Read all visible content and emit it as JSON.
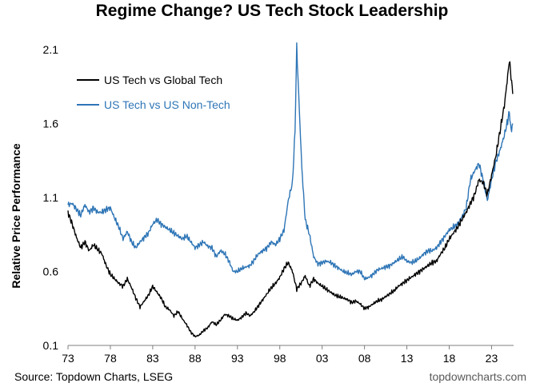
{
  "chart_data": {
    "type": "line",
    "title": "Regime Change? US Tech Stock Leadership",
    "xlabel": "",
    "ylabel": "Relative Price Performance",
    "xlim": [
      1973,
      2025.6
    ],
    "ylim": [
      0.1,
      2.1
    ],
    "x_ticks": [
      1973,
      1978,
      1983,
      1988,
      1993,
      1998,
      2003,
      2008,
      2013,
      2018,
      2023
    ],
    "x_tick_labels": [
      "73",
      "78",
      "83",
      "88",
      "93",
      "98",
      "03",
      "08",
      "13",
      "18",
      "23"
    ],
    "y_ticks": [
      0.1,
      0.6,
      1.1,
      1.6,
      2.1
    ],
    "y_tick_labels": [
      "0.1",
      "0.6",
      "1.1",
      "1.6",
      "2.1"
    ],
    "legend_position": "top-left",
    "series": [
      {
        "name": "US Tech vs Global Tech",
        "color": "#000000",
        "points": [
          [
            1973.0,
            1.0
          ],
          [
            1973.5,
            0.92
          ],
          [
            1974.0,
            0.83
          ],
          [
            1974.5,
            0.76
          ],
          [
            1975.0,
            0.8
          ],
          [
            1975.5,
            0.74
          ],
          [
            1976.0,
            0.78
          ],
          [
            1976.5,
            0.75
          ],
          [
            1977.0,
            0.72
          ],
          [
            1977.5,
            0.64
          ],
          [
            1978.0,
            0.58
          ],
          [
            1978.5,
            0.55
          ],
          [
            1979.0,
            0.52
          ],
          [
            1979.5,
            0.5
          ],
          [
            1980.0,
            0.55
          ],
          [
            1980.5,
            0.49
          ],
          [
            1981.0,
            0.42
          ],
          [
            1981.5,
            0.36
          ],
          [
            1982.0,
            0.4
          ],
          [
            1982.5,
            0.44
          ],
          [
            1983.0,
            0.5
          ],
          [
            1983.5,
            0.46
          ],
          [
            1984.0,
            0.42
          ],
          [
            1984.5,
            0.36
          ],
          [
            1985.0,
            0.34
          ],
          [
            1985.5,
            0.3
          ],
          [
            1986.0,
            0.33
          ],
          [
            1986.5,
            0.28
          ],
          [
            1987.0,
            0.24
          ],
          [
            1987.5,
            0.19
          ],
          [
            1988.0,
            0.16
          ],
          [
            1988.5,
            0.17
          ],
          [
            1989.0,
            0.2
          ],
          [
            1989.5,
            0.22
          ],
          [
            1990.0,
            0.26
          ],
          [
            1990.5,
            0.24
          ],
          [
            1991.0,
            0.27
          ],
          [
            1991.5,
            0.31
          ],
          [
            1992.0,
            0.3
          ],
          [
            1992.5,
            0.28
          ],
          [
            1993.0,
            0.27
          ],
          [
            1993.5,
            0.29
          ],
          [
            1994.0,
            0.32
          ],
          [
            1994.5,
            0.3
          ],
          [
            1995.0,
            0.33
          ],
          [
            1995.5,
            0.37
          ],
          [
            1996.0,
            0.41
          ],
          [
            1996.5,
            0.45
          ],
          [
            1997.0,
            0.49
          ],
          [
            1997.5,
            0.52
          ],
          [
            1998.0,
            0.56
          ],
          [
            1998.5,
            0.62
          ],
          [
            1999.0,
            0.66
          ],
          [
            1999.5,
            0.6
          ],
          [
            2000.0,
            0.48
          ],
          [
            2000.5,
            0.52
          ],
          [
            2001.0,
            0.57
          ],
          [
            2001.5,
            0.5
          ],
          [
            2002.0,
            0.55
          ],
          [
            2002.5,
            0.52
          ],
          [
            2003.0,
            0.5
          ],
          [
            2003.5,
            0.48
          ],
          [
            2004.0,
            0.46
          ],
          [
            2004.5,
            0.44
          ],
          [
            2005.0,
            0.43
          ],
          [
            2005.5,
            0.42
          ],
          [
            2006.0,
            0.41
          ],
          [
            2006.5,
            0.39
          ],
          [
            2007.0,
            0.4
          ],
          [
            2007.5,
            0.38
          ],
          [
            2008.0,
            0.35
          ],
          [
            2008.5,
            0.36
          ],
          [
            2009.0,
            0.38
          ],
          [
            2009.5,
            0.4
          ],
          [
            2010.0,
            0.41
          ],
          [
            2010.5,
            0.43
          ],
          [
            2011.0,
            0.45
          ],
          [
            2011.5,
            0.47
          ],
          [
            2012.0,
            0.5
          ],
          [
            2012.5,
            0.52
          ],
          [
            2013.0,
            0.54
          ],
          [
            2013.5,
            0.56
          ],
          [
            2014.0,
            0.58
          ],
          [
            2014.5,
            0.6
          ],
          [
            2015.0,
            0.62
          ],
          [
            2015.5,
            0.64
          ],
          [
            2016.0,
            0.66
          ],
          [
            2016.5,
            0.67
          ],
          [
            2017.0,
            0.72
          ],
          [
            2017.5,
            0.76
          ],
          [
            2018.0,
            0.82
          ],
          [
            2018.5,
            0.86
          ],
          [
            2019.0,
            0.9
          ],
          [
            2019.5,
            0.95
          ],
          [
            2020.0,
            1.0
          ],
          [
            2020.5,
            1.06
          ],
          [
            2021.0,
            1.12
          ],
          [
            2021.5,
            1.22
          ],
          [
            2022.0,
            1.2
          ],
          [
            2022.5,
            1.12
          ],
          [
            2023.0,
            1.25
          ],
          [
            2023.5,
            1.38
          ],
          [
            2024.0,
            1.55
          ],
          [
            2024.5,
            1.72
          ],
          [
            2024.9,
            1.92
          ],
          [
            2025.1,
            2.03
          ],
          [
            2025.3,
            1.92
          ],
          [
            2025.5,
            1.8
          ]
        ]
      },
      {
        "name": "US Tech vs US Non-Tech",
        "color": "#2e75b6",
        "points": [
          [
            1973.0,
            1.05
          ],
          [
            1973.5,
            1.06
          ],
          [
            1974.0,
            1.02
          ],
          [
            1974.5,
            0.98
          ],
          [
            1975.0,
            1.05
          ],
          [
            1975.5,
            1.0
          ],
          [
            1976.0,
            1.03
          ],
          [
            1976.5,
            1.0
          ],
          [
            1977.0,
            1.0
          ],
          [
            1977.5,
            1.02
          ],
          [
            1978.0,
            1.03
          ],
          [
            1978.5,
            0.96
          ],
          [
            1979.0,
            0.9
          ],
          [
            1979.5,
            0.82
          ],
          [
            1980.0,
            0.87
          ],
          [
            1980.5,
            0.8
          ],
          [
            1981.0,
            0.76
          ],
          [
            1981.5,
            0.8
          ],
          [
            1982.0,
            0.83
          ],
          [
            1982.5,
            0.86
          ],
          [
            1983.0,
            0.92
          ],
          [
            1983.5,
            0.95
          ],
          [
            1984.0,
            0.92
          ],
          [
            1984.5,
            0.9
          ],
          [
            1985.0,
            0.88
          ],
          [
            1985.5,
            0.86
          ],
          [
            1986.0,
            0.84
          ],
          [
            1986.5,
            0.82
          ],
          [
            1987.0,
            0.84
          ],
          [
            1987.5,
            0.8
          ],
          [
            1988.0,
            0.76
          ],
          [
            1988.5,
            0.78
          ],
          [
            1989.0,
            0.8
          ],
          [
            1989.5,
            0.77
          ],
          [
            1990.0,
            0.76
          ],
          [
            1990.5,
            0.7
          ],
          [
            1991.0,
            0.74
          ],
          [
            1991.5,
            0.72
          ],
          [
            1992.0,
            0.67
          ],
          [
            1992.5,
            0.6
          ],
          [
            1993.0,
            0.6
          ],
          [
            1993.5,
            0.62
          ],
          [
            1994.0,
            0.63
          ],
          [
            1994.5,
            0.64
          ],
          [
            1995.0,
            0.68
          ],
          [
            1995.5,
            0.72
          ],
          [
            1996.0,
            0.74
          ],
          [
            1996.5,
            0.76
          ],
          [
            1997.0,
            0.8
          ],
          [
            1997.5,
            0.78
          ],
          [
            1998.0,
            0.82
          ],
          [
            1998.5,
            0.88
          ],
          [
            1999.0,
            1.08
          ],
          [
            1999.5,
            1.2
          ],
          [
            1999.8,
            1.55
          ],
          [
            2000.0,
            2.12
          ],
          [
            2000.3,
            1.7
          ],
          [
            2000.6,
            1.3
          ],
          [
            2001.0,
            0.95
          ],
          [
            2001.5,
            0.85
          ],
          [
            2002.0,
            0.7
          ],
          [
            2002.5,
            0.65
          ],
          [
            2003.0,
            0.66
          ],
          [
            2003.5,
            0.67
          ],
          [
            2004.0,
            0.66
          ],
          [
            2004.5,
            0.64
          ],
          [
            2005.0,
            0.62
          ],
          [
            2005.5,
            0.6
          ],
          [
            2006.0,
            0.59
          ],
          [
            2006.5,
            0.58
          ],
          [
            2007.0,
            0.6
          ],
          [
            2007.5,
            0.6
          ],
          [
            2008.0,
            0.55
          ],
          [
            2008.5,
            0.56
          ],
          [
            2009.0,
            0.58
          ],
          [
            2009.5,
            0.61
          ],
          [
            2010.0,
            0.62
          ],
          [
            2010.5,
            0.63
          ],
          [
            2011.0,
            0.64
          ],
          [
            2011.5,
            0.66
          ],
          [
            2012.0,
            0.68
          ],
          [
            2012.5,
            0.7
          ],
          [
            2013.0,
            0.67
          ],
          [
            2013.5,
            0.66
          ],
          [
            2014.0,
            0.67
          ],
          [
            2014.5,
            0.69
          ],
          [
            2015.0,
            0.72
          ],
          [
            2015.5,
            0.74
          ],
          [
            2016.0,
            0.74
          ],
          [
            2016.5,
            0.76
          ],
          [
            2017.0,
            0.8
          ],
          [
            2017.5,
            0.84
          ],
          [
            2018.0,
            0.88
          ],
          [
            2018.5,
            0.9
          ],
          [
            2019.0,
            0.92
          ],
          [
            2019.5,
            0.97
          ],
          [
            2020.0,
            1.03
          ],
          [
            2020.5,
            1.22
          ],
          [
            2021.0,
            1.28
          ],
          [
            2021.5,
            1.33
          ],
          [
            2022.0,
            1.22
          ],
          [
            2022.5,
            1.08
          ],
          [
            2023.0,
            1.22
          ],
          [
            2023.5,
            1.34
          ],
          [
            2024.0,
            1.42
          ],
          [
            2024.5,
            1.52
          ],
          [
            2024.9,
            1.62
          ],
          [
            2025.1,
            1.68
          ],
          [
            2025.3,
            1.55
          ],
          [
            2025.5,
            1.6
          ]
        ]
      }
    ]
  },
  "footer": {
    "source": "Source: Topdown Charts, LSEG",
    "website": "topdowncharts.com"
  }
}
